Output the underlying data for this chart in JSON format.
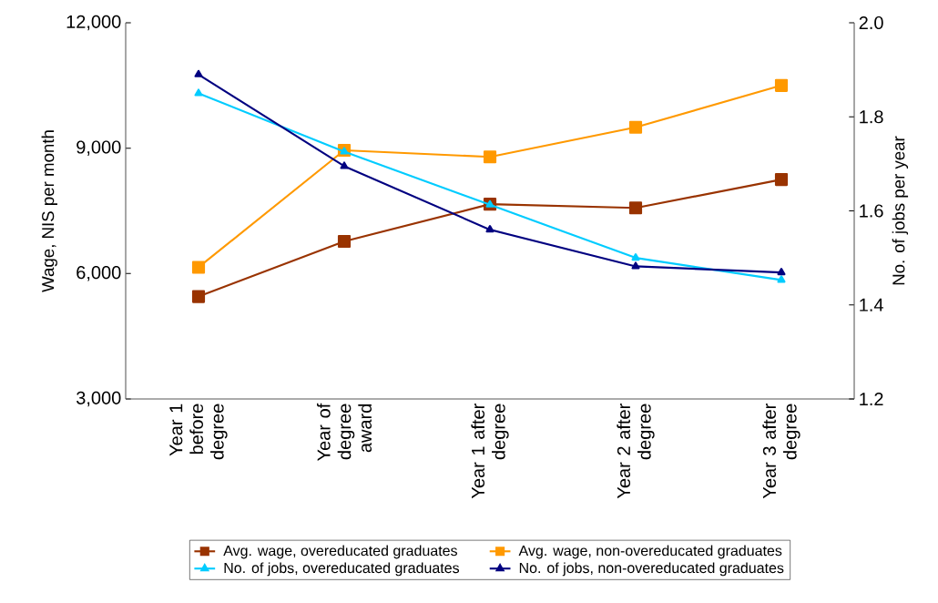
{
  "chart_data": {
    "type": "line",
    "ylabel": "Wage, NIS per month",
    "y2label": "No. of jobs per year",
    "categories": [
      "Year 1 before degree",
      "Year of degree award",
      "Year 1 after degree",
      "Year 2 after degree",
      "Year 3 after degree"
    ],
    "ylim": [
      3000,
      12000
    ],
    "yticks": [
      {
        "value": 3000,
        "label": "3,000"
      },
      {
        "value": 6000,
        "label": "6,000"
      },
      {
        "value": 9000,
        "label": "9,000"
      },
      {
        "value": 12000,
        "label": "12,000"
      }
    ],
    "y2lim": [
      1.2,
      2.0
    ],
    "y2ticks": [
      1.2,
      1.4,
      1.6,
      1.8,
      {
        "value": 2.0,
        "label": "2.0"
      }
    ],
    "grid": false,
    "legend": "bottom",
    "line_style": "solid",
    "series": [
      {
        "name": "Avg. wage, overeducated graduates",
        "color": "#993300",
        "marker": "square",
        "values": [
          5450,
          6770,
          7660,
          7570,
          8250
        ]
      },
      {
        "name": "Avg. wage, non-overeducated graduates",
        "color": "#ff9900",
        "marker": "square",
        "values": [
          6150,
          8950,
          8790,
          9500,
          10500
        ]
      },
      {
        "name": "No. of jobs, overeducated graduates",
        "color": "#00ccff",
        "marker": "triangle",
        "axis": "y2",
        "values": [
          1.85,
          1.726,
          1.613,
          1.5,
          1.453
        ]
      },
      {
        "name": "No. of jobs, non-overeducated graduates",
        "color": "#000080",
        "marker": "triangle",
        "axis": "y2",
        "values": [
          1.89,
          1.695,
          1.56,
          1.482,
          1.469
        ]
      }
    ]
  }
}
